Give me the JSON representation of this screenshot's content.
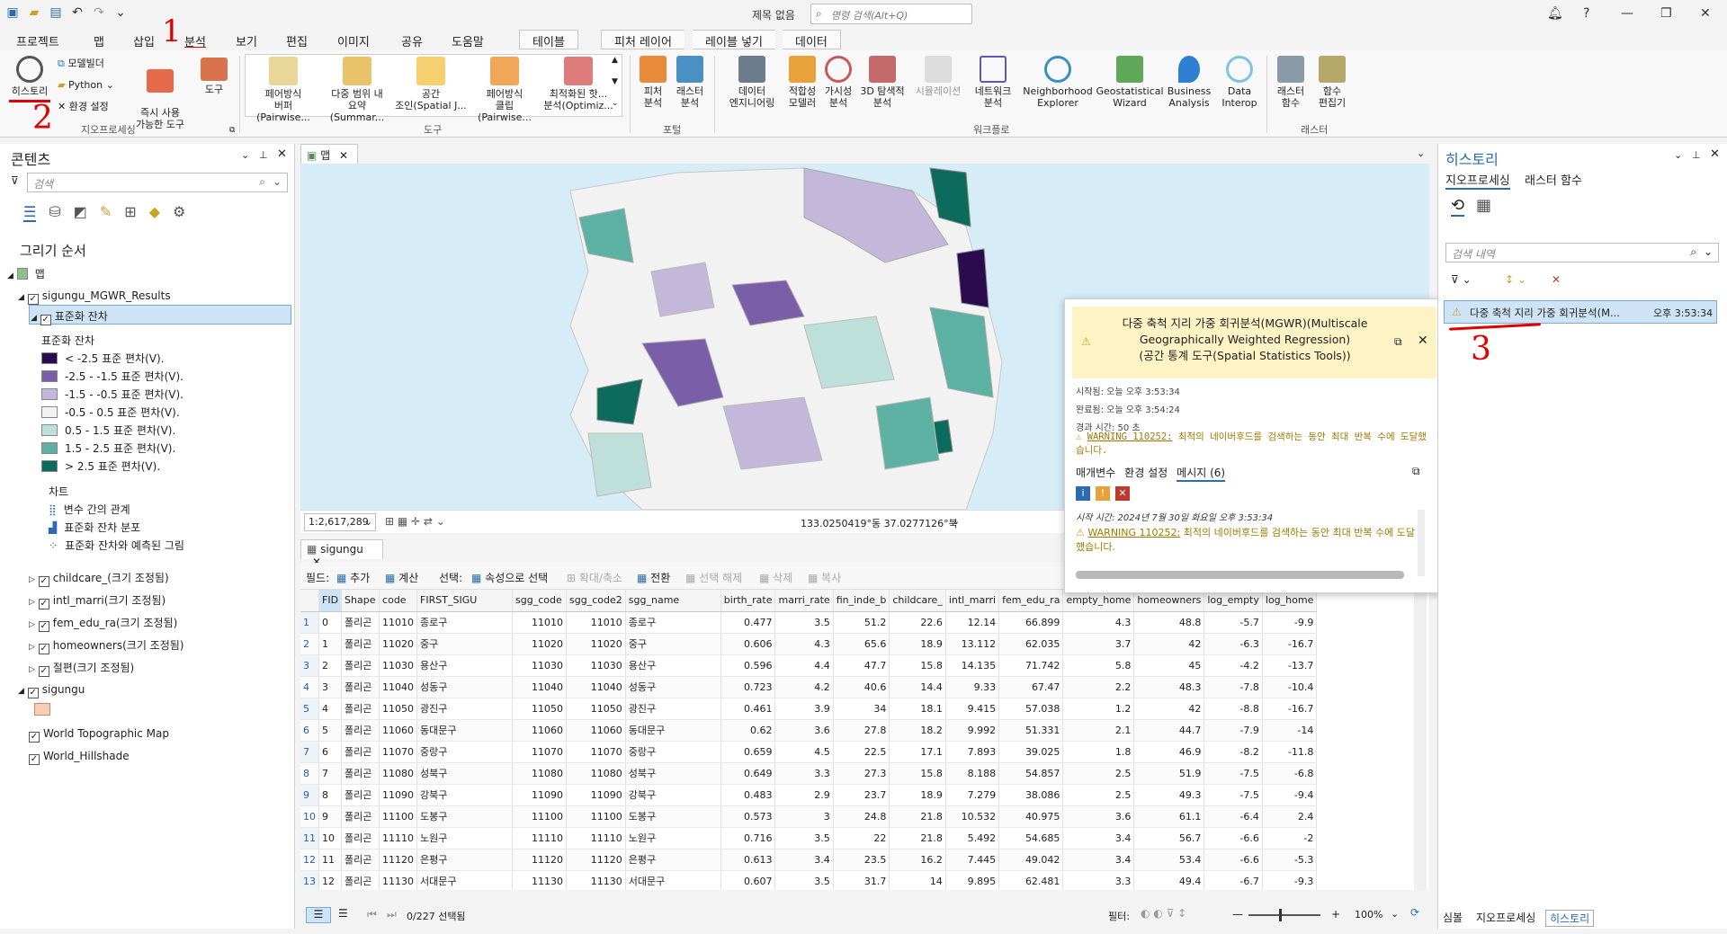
{
  "window": {
    "title": "제목 없음",
    "search_placeholder": "명령 검색(Alt+Q)"
  },
  "menu": {
    "tabs": [
      "프로젝트",
      "맵",
      "삽입",
      "분석",
      "보기",
      "편집",
      "이미지",
      "공유",
      "도움말"
    ],
    "context_tabs": [
      "테이블",
      "피처 레이어",
      "레이블 넣기",
      "데이터"
    ]
  },
  "ribbon": {
    "geoproc": {
      "history": "히스토리",
      "modelbuilder": "모델빌더",
      "python": "Python",
      "env": "환경 설정",
      "ready_tools": "즉시 사용\n가능한 도구",
      "tools": "도구",
      "label": "지오프로세싱"
    },
    "tool_gallery": [
      "페어방식\n버퍼(Pairwise...",
      "다중 범위 내\n요약(Summar...",
      "공간\n조인(Spatial J...",
      "페어방식\n클립(Pairwise...",
      "최적화된 핫...\n분석(Optimiz..."
    ],
    "tools_label": "도구",
    "portal": [
      "피처\n분석",
      "래스터\n분석"
    ],
    "portal_label": "포털",
    "workflow": [
      "데이터\n엔지니어링",
      "적합성\n모델러",
      "가시성\n분석",
      "3D 탐색적\n분석",
      "시뮬레이션",
      "네트워크\n분석",
      "Neighborhood\nExplorer",
      "Geostatistical\nWizard",
      "Business\nAnalysis",
      "Data\nInterop"
    ],
    "workflow_label": "워크플로",
    "raster": [
      "래스터\n함수",
      "함수\n편집기"
    ],
    "raster_label": "래스터"
  },
  "annotations": {
    "one": "1",
    "two": "2",
    "three": "3"
  },
  "contents": {
    "title": "콘텐츠",
    "search_placeholder": "검색",
    "draw_order": "그리기 순서",
    "map": "맵",
    "layer1": "sigungu_MGWR_Results",
    "sublayer": "표준화 잔차",
    "legend_title": "표준화 잔차",
    "legend": [
      {
        "label": "< -2.5 표준 편차(V).",
        "color": "#2b0a4e"
      },
      {
        "label": "-2.5 - -1.5 표준 편차(V).",
        "color": "#7b5ea8"
      },
      {
        "label": "-1.5 - -0.5 표준 편차(V).",
        "color": "#c3b8d9"
      },
      {
        "label": "-0.5 - 0.5 표준 편차(V).",
        "color": "#f2f2f2"
      },
      {
        "label": "0.5 - 1.5 표준 편차(V).",
        "color": "#bfe0da"
      },
      {
        "label": "1.5 - 2.5 표준 편차(V).",
        "color": "#5cb1a3"
      },
      {
        "label": "> 2.5 표준 편차(V).",
        "color": "#0c6b5d"
      }
    ],
    "charts_title": "차트",
    "charts": [
      "변수 간의 관계",
      "표준화 잔차 분포",
      "표준화 잔차와 예측된 그림"
    ],
    "other_layers": [
      "childcare_(크기 조정됨)",
      "intl_marri(크기 조정됨)",
      "fem_edu_ra(크기 조정됨)",
      "homeowners(크기 조정됨)",
      "절편(크기 조정됨)"
    ],
    "sigungu": "sigungu",
    "basemaps": [
      "World Topographic Map",
      "World_Hillshade"
    ]
  },
  "map_view": {
    "tab": "맵",
    "scale": "1:2,617,289",
    "coords": "133.0250419°동 37.0277126°북"
  },
  "table_view": {
    "tab": "sigungu",
    "toolbar": {
      "field": "필드:",
      "add": "추가",
      "calc": "계산",
      "select": "선택:",
      "by_attr": "속성으로 선택",
      "zoom": "확대/축소",
      "switch": "전환",
      "clear": "선택 해제",
      "delete": "삭제",
      "copy": "복사"
    },
    "columns": [
      "",
      "FID",
      "Shape",
      "code",
      "FIRST_SIGU",
      "sgg_code",
      "sgg_code2",
      "sgg_name",
      "birth_rate",
      "marri_rate",
      "fin_inde_b",
      "childcare_",
      "intl_marri",
      "fem_edu_ra",
      "empty_home",
      "homeowners",
      "log_empty",
      "log_home"
    ],
    "rows": [
      [
        "1",
        "0",
        "폴리곤",
        "11010",
        "종로구",
        "11010",
        "11010",
        "종로구",
        "0.477",
        "3.5",
        "51.2",
        "22.6",
        "12.14",
        "66.899",
        "4.3",
        "48.8",
        "-5.7",
        "-9.9"
      ],
      [
        "2",
        "1",
        "폴리곤",
        "11020",
        "중구",
        "11020",
        "11020",
        "중구",
        "0.606",
        "4.3",
        "65.6",
        "18.9",
        "13.112",
        "62.035",
        "3.7",
        "42",
        "-6.3",
        "-16.7"
      ],
      [
        "3",
        "2",
        "폴리곤",
        "11030",
        "용산구",
        "11030",
        "11030",
        "용산구",
        "0.596",
        "4.4",
        "47.7",
        "15.8",
        "14.135",
        "71.742",
        "5.8",
        "45",
        "-4.2",
        "-13.7"
      ],
      [
        "4",
        "3",
        "폴리곤",
        "11040",
        "성동구",
        "11040",
        "11040",
        "성동구",
        "0.723",
        "4.2",
        "40.6",
        "14.4",
        "9.33",
        "67.47",
        "2.2",
        "48.3",
        "-7.8",
        "-10.4"
      ],
      [
        "5",
        "4",
        "폴리곤",
        "11050",
        "광진구",
        "11050",
        "11050",
        "광진구",
        "0.461",
        "3.9",
        "34",
        "18.1",
        "9.415",
        "57.038",
        "1.2",
        "42",
        "-8.8",
        "-16.7"
      ],
      [
        "6",
        "5",
        "폴리곤",
        "11060",
        "동대문구",
        "11060",
        "11060",
        "동대문구",
        "0.62",
        "3.6",
        "27.8",
        "18.2",
        "9.992",
        "51.331",
        "2.1",
        "44.7",
        "-7.9",
        "-14"
      ],
      [
        "7",
        "6",
        "폴리곤",
        "11070",
        "중랑구",
        "11070",
        "11070",
        "중랑구",
        "0.659",
        "4.5",
        "22.5",
        "17.1",
        "7.893",
        "39.025",
        "1.8",
        "46.9",
        "-8.2",
        "-11.8"
      ],
      [
        "8",
        "7",
        "폴리곤",
        "11080",
        "성북구",
        "11080",
        "11080",
        "성북구",
        "0.649",
        "3.3",
        "27.3",
        "15.8",
        "8.188",
        "54.857",
        "2.5",
        "51.9",
        "-7.5",
        "-6.8"
      ],
      [
        "9",
        "8",
        "폴리곤",
        "11090",
        "강북구",
        "11090",
        "11090",
        "강북구",
        "0.483",
        "2.9",
        "23.7",
        "18.9",
        "7.279",
        "38.086",
        "2.5",
        "49.3",
        "-7.5",
        "-9.4"
      ],
      [
        "10",
        "9",
        "폴리곤",
        "11100",
        "도봉구",
        "11100",
        "11100",
        "도봉구",
        "0.573",
        "3",
        "24.8",
        "21.8",
        "10.532",
        "40.975",
        "3.6",
        "61.1",
        "-6.4",
        "2.4"
      ],
      [
        "11",
        "10",
        "폴리곤",
        "11110",
        "노원구",
        "11110",
        "11110",
        "노원구",
        "0.716",
        "3.5",
        "22",
        "21.8",
        "5.492",
        "54.685",
        "3.4",
        "56.7",
        "-6.6",
        "-2"
      ],
      [
        "12",
        "11",
        "폴리곤",
        "11120",
        "은평구",
        "11120",
        "11120",
        "은평구",
        "0.613",
        "3.4",
        "23.5",
        "16.2",
        "7.445",
        "49.042",
        "3.4",
        "53.4",
        "-6.6",
        "-5.3"
      ],
      [
        "13",
        "12",
        "폴리곤",
        "11130",
        "서대문구",
        "11130",
        "11130",
        "서대문구",
        "0.607",
        "3.5",
        "31.7",
        "14",
        "9.895",
        "62.481",
        "3.3",
        "49.4",
        "-6.7",
        "-9.3"
      ]
    ],
    "selection_status": "0/227 선택됨",
    "filter_label": "필터:",
    "zoom": "100%"
  },
  "popup": {
    "title": "다중 축척 지리 가중 회귀분석(MGWR)(Multiscale Geographically Weighted Regression)\n(공간 통계 도구(Spatial Statistics Tools))",
    "started": "시작됨: 오늘 오후 3:53:34",
    "completed": "완료됨: 오늘 오후 3:54:24",
    "elapsed": "경과 시간: 50 초",
    "warning_code": "WARNING 110252:",
    "warning_text": "최적의 네이버후드를 검색하는 동안 최대 반복 수에 도달했습니다.",
    "tabs": [
      "매개변수",
      "환경 설정",
      "메시지 (6)"
    ],
    "msg_start": "시작 시간: 2024년 7월 30일 화요일 오후 3:53:34",
    "msg_warning_code": "WARNING 110252:",
    "msg_warning_text": "최적의 네이버후드를 검색하는 동안 최대 반복 수에 도달했습니다."
  },
  "history": {
    "title": "히스토리",
    "tabs": [
      "지오프로세싱",
      "래스터 함수"
    ],
    "search_placeholder": "검색 내역",
    "item_name": "다중 축척 지리 가중 회귀분석(M...",
    "item_time": "오후 3:53:34"
  },
  "bottom_tabs": [
    "심볼",
    "지오프로세싱",
    "히스토리"
  ]
}
